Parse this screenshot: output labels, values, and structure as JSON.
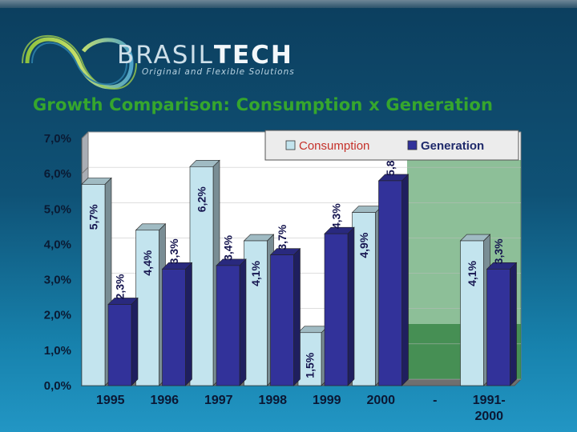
{
  "header": {
    "brand_part1": "BRASIL",
    "brand_part2": "TECH",
    "tagline": "Original and Flexible Solutions",
    "title": "Growth Comparison: Consumption x Generation"
  },
  "colors": {
    "consumption": "#c3e4ee",
    "generation": "#32329a",
    "title": "#36a62d",
    "plot_bg": "#ffffff"
  },
  "chart_data": {
    "type": "bar",
    "categories": [
      "1995",
      "1996",
      "1997",
      "1998",
      "1999",
      "2000",
      "-",
      "1991-\n2000"
    ],
    "series": [
      {
        "name": "Consumption",
        "values": [
          5.7,
          4.4,
          6.2,
          4.1,
          1.5,
          4.9,
          null,
          4.1
        ],
        "labels": [
          "5,7%",
          "4,4%",
          "6,2%",
          "4,1%",
          "1,5%",
          "4,9%",
          null,
          "4,1%"
        ]
      },
      {
        "name": "Generation",
        "values": [
          2.3,
          3.3,
          3.4,
          3.7,
          4.3,
          5.8,
          null,
          3.3
        ],
        "labels": [
          "2,3%",
          "3,3%",
          "3,4%",
          "3,7%",
          "4,3%",
          "5,8%",
          null,
          "3,3%"
        ]
      }
    ],
    "yticks": [
      "0,0%",
      "1,0%",
      "2,0%",
      "3,0%",
      "4,0%",
      "5,0%",
      "6,0%",
      "7,0%"
    ],
    "ylim": [
      0,
      7
    ],
    "legend_position": "top-right",
    "style": "3d-bar"
  }
}
